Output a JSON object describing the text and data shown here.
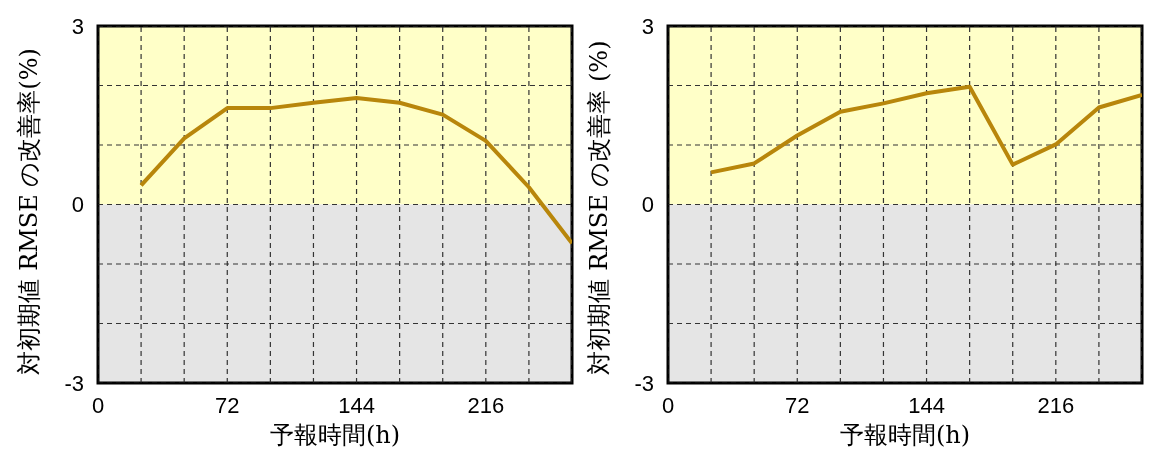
{
  "chart_data": [
    {
      "type": "line",
      "xlabel": "予報時間(h)",
      "ylabel": "対初期値 RMSE の改善率(%)",
      "x": [
        24,
        48,
        72,
        96,
        120,
        144,
        168,
        192,
        216,
        240,
        264
      ],
      "series": [
        {
          "color": "#b8860b",
          "values": [
            0.32,
            1.11,
            1.62,
            1.62,
            1.71,
            1.79,
            1.71,
            1.51,
            1.07,
            0.29,
            -0.65
          ]
        }
      ],
      "xlim": [
        0,
        264
      ],
      "xticks": [
        0,
        {
          "value": 24,
          "label": null
        },
        {
          "value": 48,
          "label": null
        },
        72,
        {
          "value": 96,
          "label": null
        },
        {
          "value": 120,
          "label": null
        },
        144,
        {
          "value": 168,
          "label": null
        },
        {
          "value": 192,
          "label": null
        },
        216,
        {
          "value": 240,
          "label": null
        },
        {
          "value": 264,
          "label": null
        }
      ],
      "ylim": [
        -3,
        3
      ],
      "yticks": [
        -3,
        {
          "value": -2,
          "label": null
        },
        {
          "value": -1,
          "label": null
        },
        0,
        {
          "value": 1,
          "label": null
        },
        {
          "value": 2,
          "label": null
        },
        3
      ],
      "bands": [
        {
          "axis": "y",
          "from": 0,
          "to": 3,
          "color": "#ffffc8"
        },
        {
          "axis": "y",
          "from": -3,
          "to": 0,
          "color": "#e5e5e5"
        }
      ],
      "grid": true,
      "legend": false,
      "marker": "none",
      "line_style": "solid"
    },
    {
      "type": "line",
      "xlabel": "予報時間(h)",
      "ylabel": "対初期値 RMSE の改善率 (%)",
      "x": [
        24,
        48,
        72,
        96,
        120,
        144,
        168,
        192,
        216,
        240,
        264
      ],
      "series": [
        {
          "color": "#b8860b",
          "values": [
            0.54,
            0.69,
            1.16,
            1.56,
            1.7,
            1.87,
            1.98,
            0.67,
            1.01,
            1.63,
            1.84
          ]
        }
      ],
      "xlim": [
        0,
        264
      ],
      "xticks": [
        0,
        {
          "value": 24,
          "label": null
        },
        {
          "value": 48,
          "label": null
        },
        72,
        {
          "value": 96,
          "label": null
        },
        {
          "value": 120,
          "label": null
        },
        144,
        {
          "value": 168,
          "label": null
        },
        {
          "value": 192,
          "label": null
        },
        216,
        {
          "value": 240,
          "label": null
        },
        {
          "value": 264,
          "label": null
        }
      ],
      "ylim": [
        -3,
        3
      ],
      "yticks": [
        -3,
        {
          "value": -2,
          "label": null
        },
        {
          "value": -1,
          "label": null
        },
        0,
        {
          "value": 1,
          "label": null
        },
        {
          "value": 2,
          "label": null
        },
        3
      ],
      "bands": [
        {
          "axis": "y",
          "from": 0,
          "to": 3,
          "color": "#ffffc8"
        },
        {
          "axis": "y",
          "from": -3,
          "to": 0,
          "color": "#e5e5e5"
        }
      ],
      "grid": true,
      "legend": false,
      "marker": "none",
      "line_style": "solid"
    }
  ]
}
